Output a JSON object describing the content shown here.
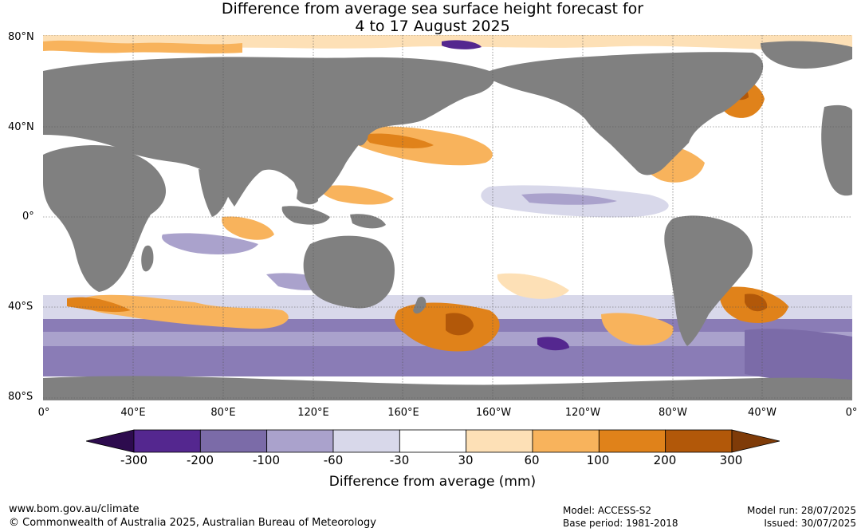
{
  "title": {
    "line1": "Difference from average sea surface height forecast for",
    "line2": "4 to 17 August 2025"
  },
  "map": {
    "lat_labels": [
      "80°N",
      "40°N",
      "0°",
      "40°S",
      "80°S"
    ],
    "lon_labels": [
      "0°",
      "40°E",
      "80°E",
      "120°E",
      "160°E",
      "160°W",
      "120°W",
      "80°W",
      "40°W",
      "0°"
    ],
    "colors": {
      "land": "#808080",
      "background": "#ffffff",
      "grid": "#555555"
    }
  },
  "colorbar": {
    "title": "Difference from average (mm)",
    "ticks": [
      "-300",
      "-200",
      "-100",
      "-60",
      "-30",
      "30",
      "60",
      "100",
      "200",
      "300"
    ],
    "colors": {
      "below_min": "#2d0b4e",
      "bins": [
        "#54278f",
        "#7b6ba8",
        "#aaa2cc",
        "#d8d8ea",
        "#ffffff",
        "#fde0b6",
        "#f8b35c",
        "#e0821a",
        "#b25809"
      ],
      "above_max": "#7f3b08"
    }
  },
  "footer": {
    "website": "www.bom.gov.au/climate",
    "copyright": "© Commonwealth of Australia 2025, Australian Bureau of Meteorology",
    "model": "Model: ACCESS-S2",
    "base_period": "Base period: 1981-2018",
    "model_run": "Model run: 28/07/2025",
    "issued": "Issued: 30/07/2025"
  }
}
